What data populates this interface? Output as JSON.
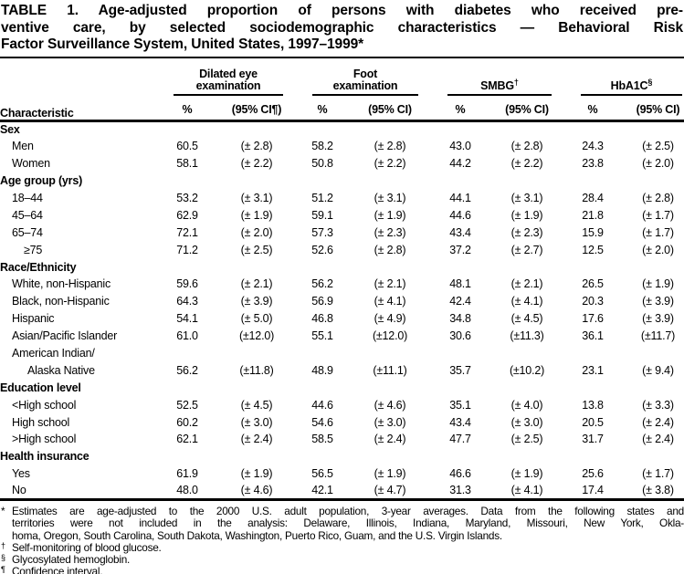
{
  "page": {
    "title_lines": [
      "TABLE 1. Age-adjusted proportion of persons with diabetes who received pre-",
      "ventive care, by selected sociodemographic characteristics — Behavioral Risk",
      "Factor Surveillance System, United States, 1997–1999*"
    ]
  },
  "table": {
    "characteristic_header": "Characteristic",
    "groups": [
      {
        "label": "Dilated eye examination",
        "marker": "",
        "pct_header": "%",
        "ci_header": "(95% CI¶)"
      },
      {
        "label": "Foot examination",
        "marker": "",
        "pct_header": "%",
        "ci_header": "(95% CI)"
      },
      {
        "label": "SMBG",
        "marker": "†",
        "pct_header": "%",
        "ci_header": "(95% CI)"
      },
      {
        "label": "HbA1C",
        "marker": "§",
        "pct_header": "%",
        "ci_header": "(95% CI)"
      }
    ],
    "rows": [
      {
        "type": "section",
        "label": "Sex"
      },
      {
        "type": "data",
        "label": "Men",
        "indent": 1,
        "values": [
          "60.5",
          "(± 2.8)",
          "58.2",
          "(± 2.8)",
          "43.0",
          "(± 2.8)",
          "24.3",
          "(± 2.5)"
        ]
      },
      {
        "type": "data",
        "label": "Women",
        "indent": 1,
        "values": [
          "58.1",
          "(± 2.2)",
          "50.8",
          "(± 2.2)",
          "44.2",
          "(± 2.2)",
          "23.8",
          "(± 2.0)"
        ]
      },
      {
        "type": "section",
        "label": "Age group (yrs)"
      },
      {
        "type": "data",
        "label": "18–44",
        "indent": 1,
        "values": [
          "53.2",
          "(± 3.1)",
          "51.2",
          "(± 3.1)",
          "44.1",
          "(± 3.1)",
          "28.4",
          "(± 2.8)"
        ]
      },
      {
        "type": "data",
        "label": "45–64",
        "indent": 1,
        "values": [
          "62.9",
          "(± 1.9)",
          "59.1",
          "(± 1.9)",
          "44.6",
          "(± 1.9)",
          "21.8",
          "(± 1.7)"
        ]
      },
      {
        "type": "data",
        "label": "65–74",
        "indent": 1,
        "values": [
          "72.1",
          "(± 2.0)",
          "57.3",
          "(± 2.3)",
          "43.4",
          "(± 2.3)",
          "15.9",
          "(± 1.7)"
        ]
      },
      {
        "type": "data",
        "label": "≥75",
        "indent": 2,
        "values": [
          "71.2",
          "(± 2.5)",
          "52.6",
          "(± 2.8)",
          "37.2",
          "(± 2.7)",
          "12.5",
          "(± 2.0)"
        ]
      },
      {
        "type": "section",
        "label": "Race/Ethnicity"
      },
      {
        "type": "data",
        "label": "White, non-Hispanic",
        "indent": 1,
        "values": [
          "59.6",
          "(± 2.1)",
          "56.2",
          "(± 2.1)",
          "48.1",
          "(± 2.1)",
          "26.5",
          "(± 1.9)"
        ]
      },
      {
        "type": "data",
        "label": "Black, non-Hispanic",
        "indent": 1,
        "values": [
          "64.3",
          "(± 3.9)",
          "56.9",
          "(± 4.1)",
          "42.4",
          "(± 4.1)",
          "20.3",
          "(± 3.9)"
        ]
      },
      {
        "type": "data",
        "label": "Hispanic",
        "indent": 1,
        "values": [
          "54.1",
          "(± 5.0)",
          "46.8",
          "(± 4.9)",
          "34.8",
          "(± 4.5)",
          "17.6",
          "(± 3.9)"
        ]
      },
      {
        "type": "data",
        "label": "Asian/Pacific Islander",
        "indent": 1,
        "values": [
          "61.0",
          "(±12.0)",
          "55.1",
          "(±12.0)",
          "30.6",
          "(±11.3)",
          "36.1",
          "(±11.7)"
        ]
      },
      {
        "type": "data",
        "label": "American Indian/",
        "indent": 1,
        "values": [
          "",
          "",
          "",
          "",
          "",
          "",
          "",
          ""
        ]
      },
      {
        "type": "data",
        "label": "Alaska Native",
        "indent": 3,
        "values": [
          "56.2",
          "(±11.8)",
          "48.9",
          "(±11.1)",
          "35.7",
          "(±10.2)",
          "23.1",
          "(± 9.4)"
        ]
      },
      {
        "type": "section",
        "label": "Education level"
      },
      {
        "type": "data",
        "label": "<High school",
        "indent": 1,
        "values": [
          "52.5",
          "(± 4.5)",
          "44.6",
          "(± 4.6)",
          "35.1",
          "(± 4.0)",
          "13.8",
          "(± 3.3)"
        ]
      },
      {
        "type": "data",
        "label": "High school",
        "indent": 1,
        "values": [
          "60.2",
          "(± 3.0)",
          "54.6",
          "(± 3.0)",
          "43.4",
          "(± 3.0)",
          "20.5",
          "(± 2.4)"
        ]
      },
      {
        "type": "data",
        "label": ">High school",
        "indent": 1,
        "values": [
          "62.1",
          "(± 2.4)",
          "58.5",
          "(± 2.4)",
          "47.7",
          "(± 2.5)",
          "31.7",
          "(± 2.4)"
        ]
      },
      {
        "type": "section",
        "label": "Health insurance"
      },
      {
        "type": "data",
        "label": "Yes",
        "indent": 1,
        "values": [
          "61.9",
          "(± 1.9)",
          "56.5",
          "(± 1.9)",
          "46.6",
          "(± 1.9)",
          "25.6",
          "(± 1.7)"
        ]
      },
      {
        "type": "data",
        "label": "No",
        "indent": 1,
        "values": [
          "48.0",
          "(± 4.6)",
          "42.1",
          "(± 4.7)",
          "31.3",
          "(± 4.1)",
          "17.4",
          "(± 3.8)"
        ]
      }
    ]
  },
  "footnotes": [
    {
      "marker": "*",
      "lines": [
        "Estimates are age-adjusted to the 2000 U.S. adult population, 3-year averages. Data from the following states and",
        "territories were not included in the analysis: Delaware, Illinois, Indiana, Maryland, Missouri, New York, Okla-",
        "homa, Oregon, South Carolina, South Dakota, Washington, Puerto Rico, Guam, and the U.S. Virgin Islands."
      ]
    },
    {
      "marker": "†",
      "lines": [
        "Self-monitoring of blood glucose."
      ]
    },
    {
      "marker": "§",
      "lines": [
        "Glycosylated hemoglobin."
      ]
    },
    {
      "marker": "¶",
      "lines": [
        "Confidence interval."
      ]
    }
  ]
}
